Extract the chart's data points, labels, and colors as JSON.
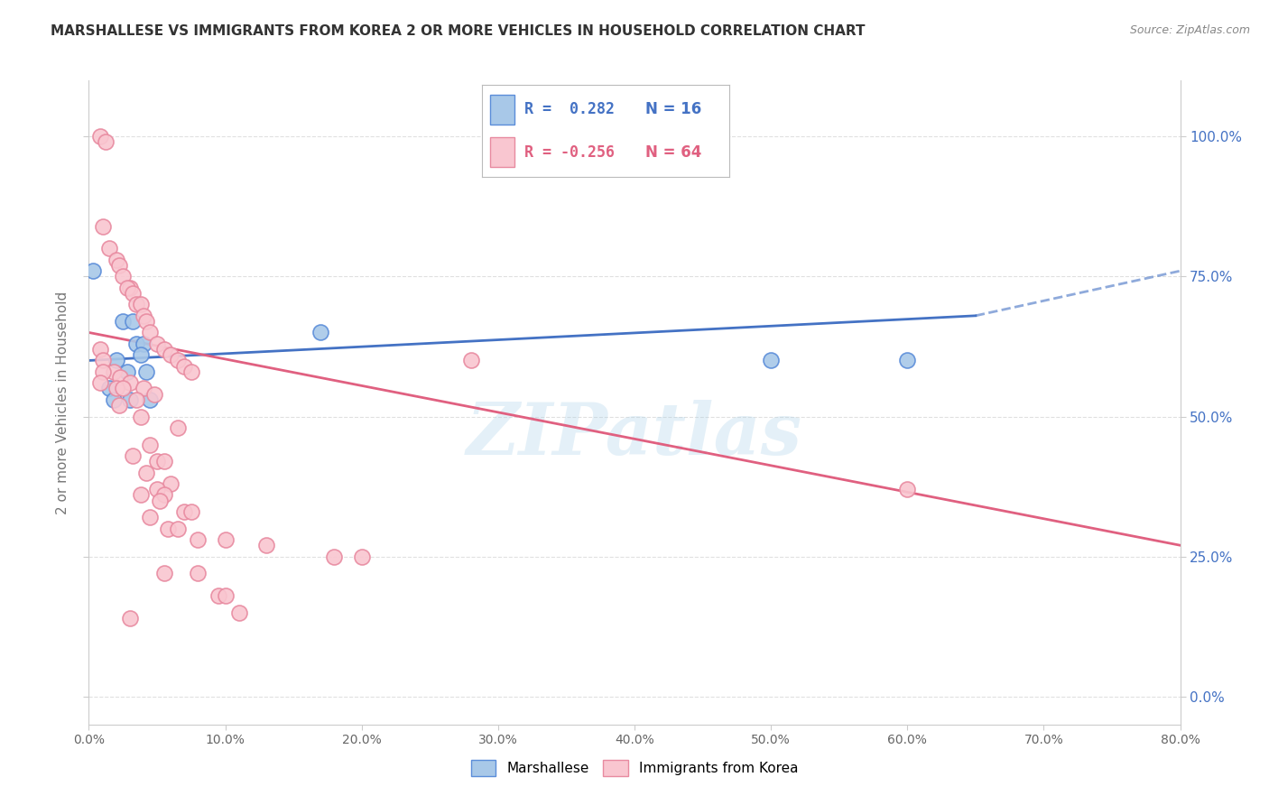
{
  "title": "MARSHALLESE VS IMMIGRANTS FROM KOREA 2 OR MORE VEHICLES IN HOUSEHOLD CORRELATION CHART",
  "source": "Source: ZipAtlas.com",
  "ylabel": "2 or more Vehicles in Household",
  "ytick_labels": [
    "0.0%",
    "25.0%",
    "50.0%",
    "75.0%",
    "100.0%"
  ],
  "ytick_values": [
    0,
    25,
    50,
    75,
    100
  ],
  "xtick_labels": [
    "0.0%",
    "10.0%",
    "20.0%",
    "30.0%",
    "40.0%",
    "50.0%",
    "60.0%",
    "70.0%",
    "80.0%"
  ],
  "xtick_values": [
    0,
    10,
    20,
    30,
    40,
    50,
    60,
    70,
    80
  ],
  "xlim": [
    0,
    80
  ],
  "ylim": [
    -5,
    110
  ],
  "legend_r_blue": "R =  0.282",
  "legend_n_blue": "N = 16",
  "legend_r_pink": "R = -0.256",
  "legend_n_pink": "N = 64",
  "blue_color": "#a8c8e8",
  "pink_color": "#f9c6d0",
  "blue_edge_color": "#5b8dd9",
  "pink_edge_color": "#e88aa0",
  "blue_line_color": "#4472c4",
  "pink_line_color": "#e06080",
  "blue_scatter": [
    [
      0.3,
      76
    ],
    [
      2.5,
      67
    ],
    [
      3.2,
      67
    ],
    [
      3.5,
      63
    ],
    [
      4.0,
      63
    ],
    [
      2.0,
      60
    ],
    [
      3.8,
      61
    ],
    [
      2.8,
      58
    ],
    [
      4.2,
      58
    ],
    [
      1.5,
      55
    ],
    [
      3.0,
      53
    ],
    [
      1.8,
      53
    ],
    [
      4.5,
      53
    ],
    [
      17.0,
      65
    ],
    [
      50.0,
      60
    ],
    [
      60.0,
      60
    ]
  ],
  "pink_scatter": [
    [
      0.8,
      100
    ],
    [
      1.2,
      99
    ],
    [
      1.0,
      84
    ],
    [
      1.5,
      80
    ],
    [
      2.0,
      78
    ],
    [
      2.2,
      77
    ],
    [
      2.5,
      75
    ],
    [
      3.0,
      73
    ],
    [
      2.8,
      73
    ],
    [
      3.2,
      72
    ],
    [
      3.5,
      70
    ],
    [
      3.8,
      70
    ],
    [
      4.0,
      68
    ],
    [
      4.2,
      67
    ],
    [
      4.5,
      65
    ],
    [
      5.0,
      63
    ],
    [
      5.5,
      62
    ],
    [
      6.0,
      61
    ],
    [
      6.5,
      60
    ],
    [
      7.0,
      59
    ],
    [
      7.5,
      58
    ],
    [
      1.8,
      58
    ],
    [
      2.3,
      57
    ],
    [
      3.0,
      56
    ],
    [
      2.0,
      55
    ],
    [
      2.5,
      55
    ],
    [
      4.0,
      55
    ],
    [
      4.8,
      54
    ],
    [
      3.5,
      53
    ],
    [
      2.2,
      52
    ],
    [
      3.8,
      50
    ],
    [
      6.5,
      48
    ],
    [
      4.5,
      45
    ],
    [
      3.2,
      43
    ],
    [
      5.0,
      42
    ],
    [
      5.5,
      42
    ],
    [
      4.2,
      40
    ],
    [
      6.0,
      38
    ],
    [
      5.0,
      37
    ],
    [
      3.8,
      36
    ],
    [
      5.5,
      36
    ],
    [
      5.2,
      35
    ],
    [
      7.0,
      33
    ],
    [
      7.5,
      33
    ],
    [
      4.5,
      32
    ],
    [
      5.8,
      30
    ],
    [
      6.5,
      30
    ],
    [
      8.0,
      28
    ],
    [
      10.0,
      28
    ],
    [
      13.0,
      27
    ],
    [
      18.0,
      25
    ],
    [
      20.0,
      25
    ],
    [
      5.5,
      22
    ],
    [
      8.0,
      22
    ],
    [
      9.5,
      18
    ],
    [
      10.0,
      18
    ],
    [
      11.0,
      15
    ],
    [
      3.0,
      14
    ],
    [
      60.0,
      37
    ],
    [
      28.0,
      60
    ],
    [
      0.8,
      62
    ],
    [
      1.0,
      60
    ],
    [
      1.0,
      58
    ],
    [
      0.8,
      56
    ]
  ],
  "watermark": "ZIPatlas",
  "background_color": "#ffffff",
  "grid_color": "#e0e0e0",
  "blue_line_start_x": 0,
  "blue_line_end_x": 65,
  "blue_dash_start_x": 65,
  "blue_dash_end_x": 80,
  "blue_line_start_y": 60,
  "blue_line_end_y": 68,
  "blue_dash_end_y": 76,
  "pink_line_start_x": 0,
  "pink_line_end_x": 80,
  "pink_line_start_y": 65,
  "pink_line_end_y": 27
}
